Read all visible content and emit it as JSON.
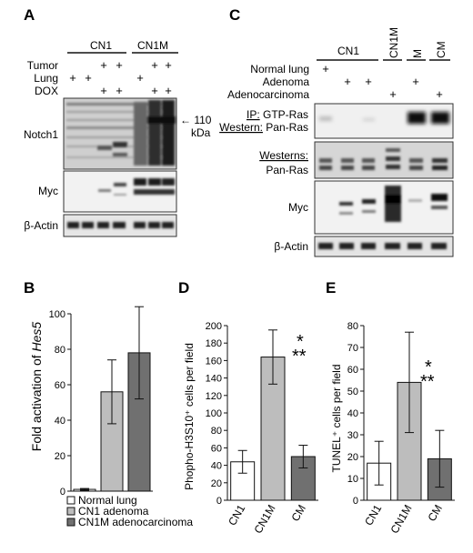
{
  "panels": {
    "A": {
      "letter": "A",
      "groups": [
        "CN1",
        "CN1M"
      ],
      "conditions": [
        {
          "name": "Tumor",
          "marks": [
            "",
            "",
            "+",
            "+",
            "",
            "+",
            "+"
          ]
        },
        {
          "name": "Lung",
          "marks": [
            "+",
            "+",
            "",
            "",
            "+",
            "",
            ""
          ]
        },
        {
          "name": "DOX",
          "marks": [
            "",
            "",
            "+",
            "+",
            "",
            "+",
            "+"
          ]
        }
      ],
      "blots": [
        "Notch1",
        "Myc",
        "β-Actin"
      ],
      "arrow_text": "← 110",
      "arrow_unit": "kDa"
    },
    "C": {
      "letter": "C",
      "groups": [
        "CN1",
        "CN1M",
        "M",
        "CM"
      ],
      "conditions": [
        {
          "name": "Normal lung",
          "marks": [
            "+",
            "",
            "",
            "",
            "",
            ""
          ]
        },
        {
          "name": "Adenoma",
          "marks": [
            "",
            "+",
            "+",
            "",
            "+",
            ""
          ]
        },
        {
          "name": "Adenocarcinoma",
          "marks": [
            "",
            "",
            "",
            "+",
            "",
            "+"
          ]
        }
      ],
      "ip_line1_head": "IP:",
      "ip_line1_rest": " GTP-Ras",
      "ip_line2_head": "Western:",
      "ip_line2_rest": " Pan-Ras",
      "westerns_head": "Westerns:",
      "blots": [
        "Pan-Ras",
        "Myc",
        "β-Actin"
      ]
    },
    "B": {
      "letter": "B",
      "ylabel_prefix": "Fold activation of ",
      "ylabel_gene": "Hes5",
      "legend": [
        {
          "name": "Normal lung",
          "color": "#ffffff"
        },
        {
          "name": "CN1 adenoma",
          "color": "#bdbdbd"
        },
        {
          "name": "CN1M adenocarcinoma",
          "color": "#707070"
        }
      ]
    },
    "D": {
      "letter": "D",
      "ylabel": "Phopho-H3S10⁺ cells per field",
      "stars": [
        "*",
        "**"
      ]
    },
    "E": {
      "letter": "E",
      "ylabel": "TUNEL⁺ cells per field",
      "stars": [
        "*",
        "**"
      ]
    }
  },
  "chart_data": [
    {
      "type": "bar",
      "panel": "B",
      "categories": [
        "Normal lung",
        "CN1 adenoma",
        "CN1M adenocarcinoma"
      ],
      "values": [
        1,
        56,
        78
      ],
      "errors": [
        0.5,
        18,
        26
      ],
      "colors": [
        "#ffffff",
        "#bdbdbd",
        "#707070"
      ],
      "ylabel": "Fold activation of Hes5",
      "ylim": [
        0,
        100
      ],
      "yticks": [
        0,
        20,
        40,
        60,
        80,
        100
      ]
    },
    {
      "type": "bar",
      "panel": "D",
      "categories": [
        "CN1",
        "CN1M",
        "CM"
      ],
      "values": [
        44,
        164,
        50
      ],
      "errors": [
        13,
        31,
        13
      ],
      "colors": [
        "#ffffff",
        "#bdbdbd",
        "#707070"
      ],
      "ylabel": "Phopho-H3S10⁺ cells per field",
      "ylim": [
        0,
        200
      ],
      "yticks": [
        0,
        20,
        40,
        60,
        80,
        100,
        120,
        140,
        160,
        180,
        200
      ]
    },
    {
      "type": "bar",
      "panel": "E",
      "categories": [
        "CN1",
        "CN1M",
        "CM"
      ],
      "values": [
        17,
        54,
        19
      ],
      "errors": [
        10,
        23,
        13
      ],
      "colors": [
        "#ffffff",
        "#bdbdbd",
        "#707070"
      ],
      "ylabel": "TUNEL⁺ cells per field",
      "ylim": [
        0,
        80
      ],
      "yticks": [
        0,
        10,
        20,
        30,
        40,
        50,
        60,
        70,
        80
      ]
    }
  ]
}
